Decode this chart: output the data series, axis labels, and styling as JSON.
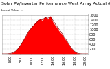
{
  "title": "Solar PV/Inverter Performance West Array Actual & Average Power Output",
  "subtitle": "Latest Value: ---",
  "bg_color": "#ffffff",
  "plot_bg_color": "#ffffff",
  "grid_color": "#bbbbbb",
  "fill_color": "#ff0000",
  "line_color": "#cc0000",
  "ylim": [
    0,
    1600
  ],
  "yticks": [
    200,
    400,
    600,
    800,
    1000,
    1200,
    1400,
    1600
  ],
  "xlim": [
    4.5,
    20.5
  ],
  "x_values": [
    4.5,
    5.0,
    5.5,
    6.0,
    6.5,
    7.0,
    7.5,
    8.0,
    8.5,
    9.0,
    9.5,
    10.0,
    10.5,
    11.0,
    11.5,
    12.0,
    12.5,
    13.0,
    13.5,
    14.0,
    14.5,
    15.0,
    15.5,
    16.0,
    16.5,
    17.0,
    17.5,
    18.0,
    18.5,
    19.0,
    19.5,
    20.0,
    20.5
  ],
  "y_actual": [
    0,
    0,
    2,
    15,
    45,
    110,
    220,
    380,
    560,
    760,
    950,
    1080,
    1200,
    1320,
    1400,
    1420,
    1500,
    1480,
    1520,
    1380,
    1200,
    1050,
    900,
    720,
    560,
    380,
    220,
    100,
    30,
    5,
    0,
    0,
    0
  ],
  "y_spiky": [
    0,
    0,
    2,
    18,
    50,
    130,
    260,
    420,
    600,
    780,
    980,
    1120,
    1250,
    1360,
    1450,
    1380,
    1560,
    1430,
    1580,
    1300,
    1150,
    980,
    840,
    680,
    520,
    350,
    200,
    90,
    25,
    3,
    0,
    0,
    0
  ],
  "xtick_positions": [
    6,
    8,
    10,
    12,
    14,
    16,
    18,
    20
  ],
  "xtick_labels": [
    "6:00",
    "8:00",
    "10:00",
    "12:00",
    "14:00",
    "16:00",
    "18:00",
    "20:00"
  ],
  "title_fontsize": 4.5,
  "tick_fontsize": 3.5,
  "title_color": "#000000",
  "tick_color": "#000000"
}
